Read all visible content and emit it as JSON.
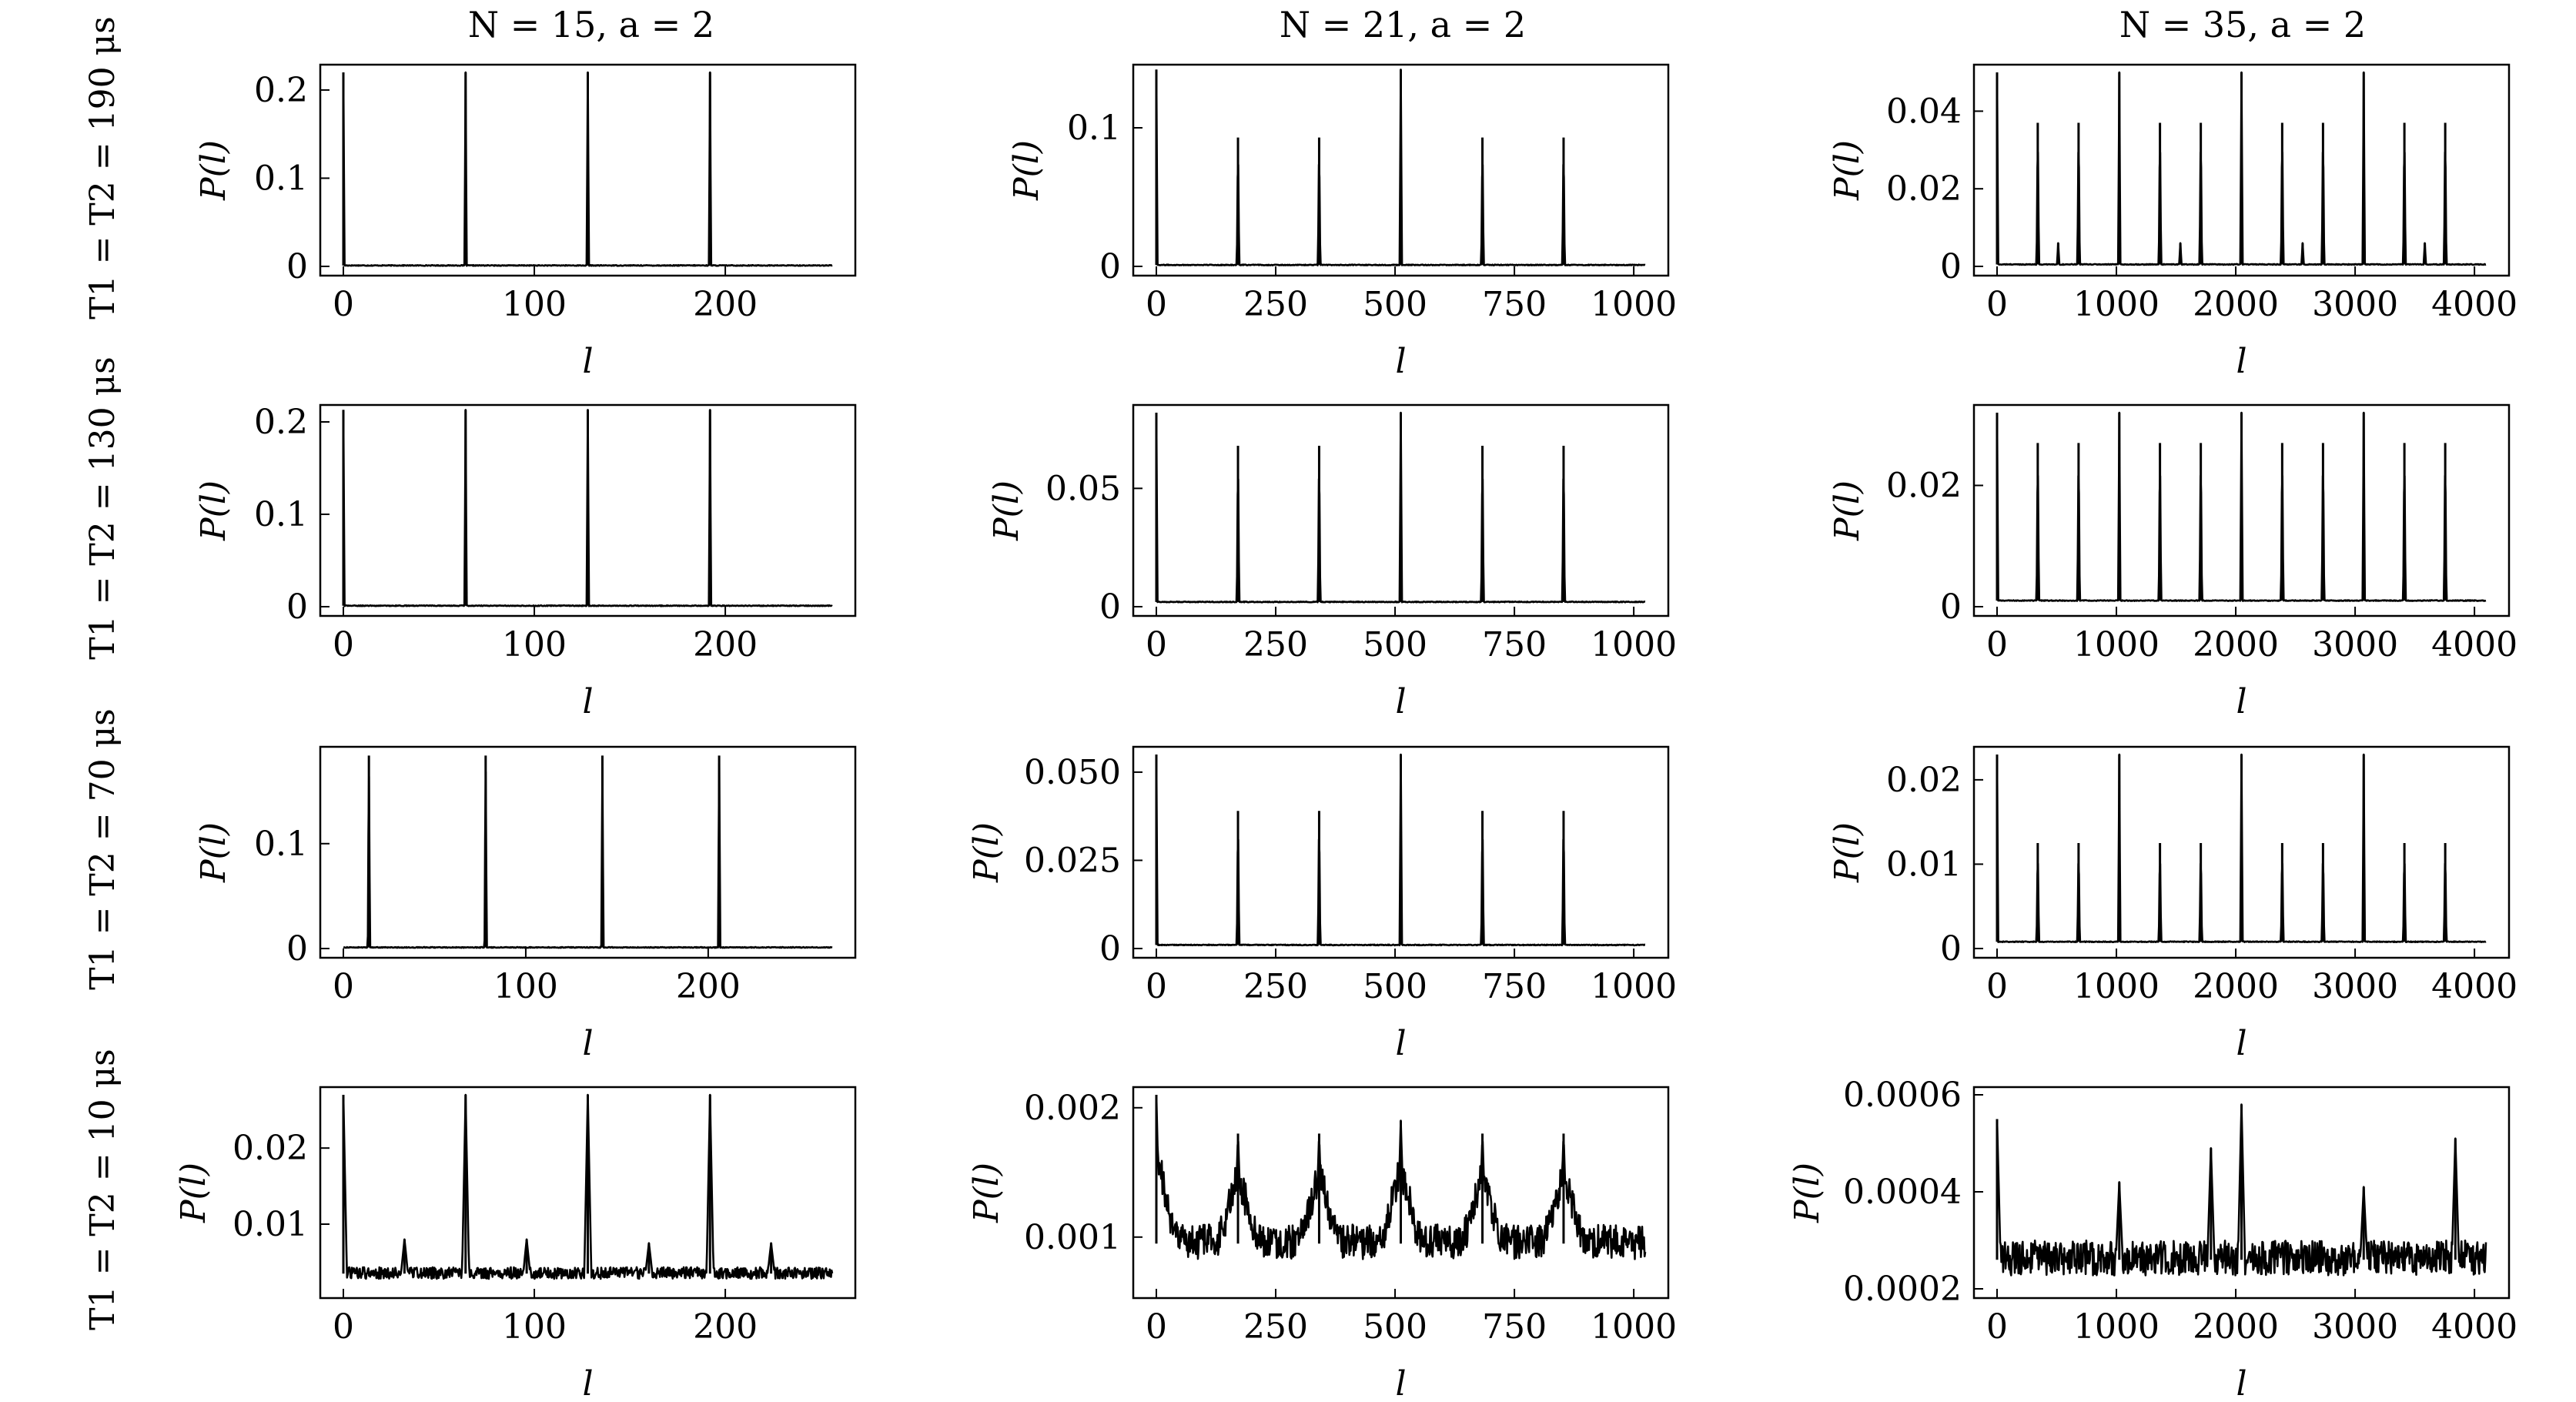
{
  "figure": {
    "column_titles": [
      "N = 15, a = 2",
      "N = 21, a = 2",
      "N = 35, a = 2"
    ],
    "row_labels": [
      "T1 = T2 = 190 μs",
      "T1 = T2 = 130 μs",
      "T1 = T2 = 70 μs",
      "T1 = T2 = 10 μs"
    ]
  },
  "chart_data": [
    {
      "type": "line",
      "row": 0,
      "col": 0,
      "xlabel": "l",
      "ylabel": "P(l)",
      "xlim": [
        0,
        256
      ],
      "ylim": [
        0,
        0.22
      ],
      "xticks": [
        "0",
        "100",
        "200"
      ],
      "yticks": [
        "0",
        "0.1",
        "0.2"
      ],
      "peaks": [
        [
          0,
          0.22
        ],
        [
          64,
          0.22
        ],
        [
          128,
          0.22
        ],
        [
          192,
          0.22
        ]
      ],
      "baseline": 0.001
    },
    {
      "type": "line",
      "row": 0,
      "col": 1,
      "xlabel": "l",
      "ylabel": "P(l)",
      "xlim": [
        0,
        1024
      ],
      "ylim": [
        0,
        0.14
      ],
      "xticks": [
        "0",
        "250",
        "500",
        "750",
        "1000"
      ],
      "yticks": [
        "0",
        "0.1"
      ],
      "peaks": [
        [
          0,
          0.142
        ],
        [
          171,
          0.093
        ],
        [
          341,
          0.093
        ],
        [
          512,
          0.142
        ],
        [
          683,
          0.093
        ],
        [
          853,
          0.093
        ]
      ],
      "baseline": 0.001
    },
    {
      "type": "line",
      "row": 0,
      "col": 2,
      "xlabel": "l",
      "ylabel": "P(l)",
      "xlim": [
        0,
        4096
      ],
      "ylim": [
        0,
        0.05
      ],
      "xticks": [
        "0",
        "1000",
        "2000",
        "3000",
        "4000"
      ],
      "yticks": [
        "0",
        "0.02",
        "0.04"
      ],
      "peaks": [
        [
          0,
          0.05
        ],
        [
          341,
          0.037
        ],
        [
          683,
          0.037
        ],
        [
          1024,
          0.05
        ],
        [
          1365,
          0.037
        ],
        [
          1707,
          0.037
        ],
        [
          2048,
          0.05
        ],
        [
          2389,
          0.037
        ],
        [
          2731,
          0.037
        ],
        [
          3072,
          0.05
        ],
        [
          3413,
          0.037
        ],
        [
          3755,
          0.037
        ],
        [
          512,
          0.006
        ],
        [
          1536,
          0.006
        ],
        [
          2560,
          0.006
        ],
        [
          3584,
          0.006
        ]
      ],
      "baseline": 0.0005
    },
    {
      "type": "line",
      "row": 1,
      "col": 0,
      "xlabel": "l",
      "ylabel": "P(l)",
      "xlim": [
        0,
        256
      ],
      "ylim": [
        0,
        0.21
      ],
      "xticks": [
        "0",
        "100",
        "200"
      ],
      "yticks": [
        "0",
        "0.1",
        "0.2"
      ],
      "peaks": [
        [
          0,
          0.213
        ],
        [
          64,
          0.213
        ],
        [
          128,
          0.213
        ],
        [
          192,
          0.213
        ]
      ],
      "baseline": 0.001
    },
    {
      "type": "line",
      "row": 1,
      "col": 1,
      "xlabel": "l",
      "ylabel": "P(l)",
      "xlim": [
        0,
        1024
      ],
      "ylim": [
        0,
        0.082
      ],
      "xticks": [
        "0",
        "250",
        "500",
        "750",
        "1000"
      ],
      "yticks": [
        "0",
        "0.05"
      ],
      "peaks": [
        [
          0,
          0.082
        ],
        [
          171,
          0.068
        ],
        [
          341,
          0.068
        ],
        [
          512,
          0.082
        ],
        [
          683,
          0.068
        ],
        [
          853,
          0.068
        ]
      ],
      "baseline": 0.002
    },
    {
      "type": "line",
      "row": 1,
      "col": 2,
      "xlabel": "l",
      "ylabel": "P(l)",
      "xlim": [
        0,
        4096
      ],
      "ylim": [
        0,
        0.032
      ],
      "xticks": [
        "0",
        "1000",
        "2000",
        "3000",
        "4000"
      ],
      "yticks": [
        "0",
        "0.02"
      ],
      "peaks": [
        [
          0,
          0.032
        ],
        [
          341,
          0.027
        ],
        [
          683,
          0.027
        ],
        [
          1024,
          0.032
        ],
        [
          1365,
          0.027
        ],
        [
          1707,
          0.027
        ],
        [
          2048,
          0.032
        ],
        [
          2389,
          0.027
        ],
        [
          2731,
          0.027
        ],
        [
          3072,
          0.032
        ],
        [
          3413,
          0.027
        ],
        [
          3755,
          0.027
        ]
      ],
      "baseline": 0.001
    },
    {
      "type": "line",
      "row": 2,
      "col": 0,
      "xlabel": "l",
      "ylabel": "P(l)",
      "xlim": [
        0,
        268
      ],
      "ylim": [
        0,
        0.185
      ],
      "xticks": [
        "0",
        "100",
        "200"
      ],
      "yticks": [
        "0",
        "0.1"
      ],
      "peaks": [
        [
          14,
          0.184
        ],
        [
          78,
          0.184
        ],
        [
          142,
          0.184
        ],
        [
          206,
          0.184
        ]
      ],
      "baseline": 0.001
    },
    {
      "type": "line",
      "row": 2,
      "col": 1,
      "xlabel": "l",
      "ylabel": "P(l)",
      "xlim": [
        0,
        1024
      ],
      "ylim": [
        0,
        0.055
      ],
      "xticks": [
        "0",
        "250",
        "500",
        "750",
        "1000"
      ],
      "yticks": [
        "0",
        "0.025",
        "0.050"
      ],
      "peaks": [
        [
          0,
          0.055
        ],
        [
          171,
          0.039
        ],
        [
          341,
          0.039
        ],
        [
          512,
          0.055
        ],
        [
          683,
          0.039
        ],
        [
          853,
          0.039
        ]
      ],
      "baseline": 0.001
    },
    {
      "type": "line",
      "row": 2,
      "col": 2,
      "xlabel": "l",
      "ylabel": "P(l)",
      "xlim": [
        0,
        4096
      ],
      "ylim": [
        0,
        0.023
      ],
      "xticks": [
        "0",
        "1000",
        "2000",
        "3000",
        "4000"
      ],
      "yticks": [
        "0",
        "0.01",
        "0.02"
      ],
      "peaks": [
        [
          0,
          0.023
        ],
        [
          341,
          0.0125
        ],
        [
          683,
          0.0125
        ],
        [
          1024,
          0.023
        ],
        [
          1365,
          0.0125
        ],
        [
          1707,
          0.0125
        ],
        [
          2048,
          0.023
        ],
        [
          2389,
          0.0125
        ],
        [
          2731,
          0.0125
        ],
        [
          3072,
          0.023
        ],
        [
          3413,
          0.0125
        ],
        [
          3755,
          0.0125
        ]
      ],
      "baseline": 0.0008
    },
    {
      "type": "line",
      "row": 3,
      "col": 0,
      "xlabel": "l",
      "ylabel": "P(l)",
      "xlim": [
        0,
        256
      ],
      "ylim": [
        0.0015,
        0.027
      ],
      "xticks": [
        "0",
        "100",
        "200"
      ],
      "yticks": [
        "0.01",
        "0.02"
      ],
      "peaks": [
        [
          0,
          0.027
        ],
        [
          64,
          0.027
        ],
        [
          128,
          0.027
        ],
        [
          192,
          0.027
        ],
        [
          32,
          0.008
        ],
        [
          96,
          0.008
        ],
        [
          160,
          0.0075
        ],
        [
          224,
          0.0075
        ]
      ],
      "baseline": 0.0035
    },
    {
      "type": "line",
      "row": 3,
      "col": 1,
      "xlabel": "l",
      "ylabel": "P(l)",
      "xlim": [
        0,
        1024
      ],
      "ylim": [
        0.0006,
        0.0021
      ],
      "xticks": [
        "0",
        "250",
        "500",
        "750",
        "1000"
      ],
      "yticks": [
        "0.001",
        "0.002"
      ],
      "peaks": [
        [
          0,
          0.0021
        ],
        [
          171,
          0.0018
        ],
        [
          341,
          0.0018
        ],
        [
          512,
          0.0019
        ],
        [
          683,
          0.0018
        ],
        [
          853,
          0.0018
        ]
      ],
      "baseline": 0.00095
    },
    {
      "type": "line",
      "row": 3,
      "col": 2,
      "xlabel": "l",
      "ylabel": "P(l)",
      "xlim": [
        0,
        4096
      ],
      "ylim": [
        0.0002,
        0.0006
      ],
      "xticks": [
        "0",
        "1000",
        "2000",
        "3000",
        "4000"
      ],
      "yticks": [
        "0.0002",
        "0.0004",
        "0.0006"
      ],
      "peaks": [
        [
          0,
          0.00055
        ],
        [
          2048,
          0.00058
        ],
        [
          1792,
          0.00049
        ],
        [
          3840,
          0.00051
        ],
        [
          1024,
          0.00042
        ],
        [
          3072,
          0.00041
        ]
      ],
      "baseline": 0.00026
    }
  ]
}
